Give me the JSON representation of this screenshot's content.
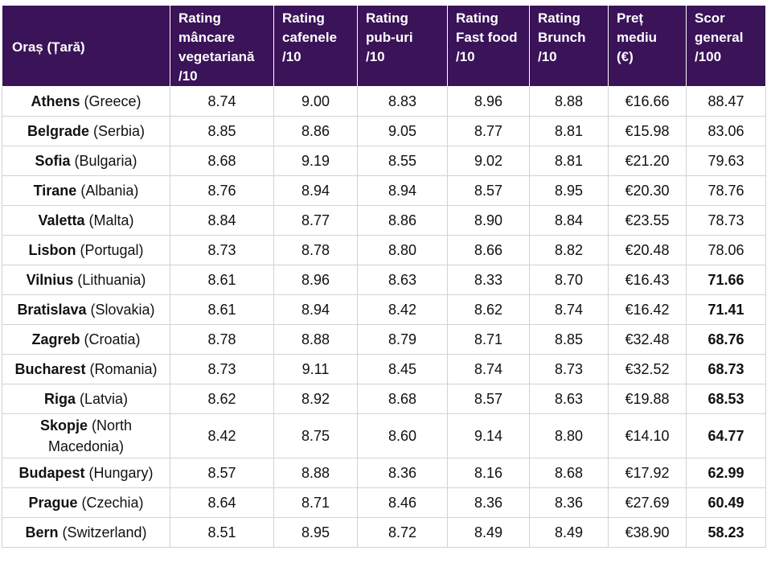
{
  "table": {
    "headers": [
      "Oraș (Țară)",
      "Rating\nmâncare\nvegetariană\n/10",
      "Rating\ncafenele\n/10",
      "Rating\npub-uri\n/10",
      "Rating\nFast food\n/10",
      "Rating\nBrunch\n/10",
      "Preț\nmediu\n(€)",
      "Scor\ngeneral\n/100"
    ],
    "rows": [
      {
        "city": "Athens",
        "country": "(Greece)",
        "veg": "8.74",
        "cafe": "9.00",
        "pub": "8.83",
        "fast": "8.96",
        "brunch": "8.88",
        "price": "€16.66",
        "score": "88.47",
        "score_bold": false
      },
      {
        "city": "Belgrade",
        "country": "(Serbia)",
        "veg": "8.85",
        "cafe": "8.86",
        "pub": "9.05",
        "fast": "8.77",
        "brunch": "8.81",
        "price": "€15.98",
        "score": "83.06",
        "score_bold": false
      },
      {
        "city": "Sofia",
        "country": "(Bulgaria)",
        "veg": "8.68",
        "cafe": "9.19",
        "pub": "8.55",
        "fast": "9.02",
        "brunch": "8.81",
        "price": "€21.20",
        "score": "79.63",
        "score_bold": false
      },
      {
        "city": "Tirane",
        "country": "(Albania)",
        "veg": "8.76",
        "cafe": "8.94",
        "pub": "8.94",
        "fast": "8.57",
        "brunch": "8.95",
        "price": "€20.30",
        "score": "78.76",
        "score_bold": false
      },
      {
        "city": "Valetta",
        "country": "(Malta)",
        "veg": "8.84",
        "cafe": "8.77",
        "pub": "8.86",
        "fast": "8.90",
        "brunch": "8.84",
        "price": "€23.55",
        "score": "78.73",
        "score_bold": false
      },
      {
        "city": "Lisbon",
        "country": "(Portugal)",
        "veg": "8.73",
        "cafe": "8.78",
        "pub": "8.80",
        "fast": "8.66",
        "brunch": "8.82",
        "price": "€20.48",
        "score": "78.06",
        "score_bold": false
      },
      {
        "city": "Vilnius",
        "country": "(Lithuania)",
        "veg": "8.61",
        "cafe": "8.96",
        "pub": "8.63",
        "fast": "8.33",
        "brunch": "8.70",
        "price": "€16.43",
        "score": "71.66",
        "score_bold": true
      },
      {
        "city": "Bratislava",
        "country": "(Slovakia)",
        "veg": "8.61",
        "cafe": "8.94",
        "pub": "8.42",
        "fast": "8.62",
        "brunch": "8.74",
        "price": "€16.42",
        "score": "71.41",
        "score_bold": true
      },
      {
        "city": "Zagreb",
        "country": "(Croatia)",
        "veg": "8.78",
        "cafe": "8.88",
        "pub": "8.79",
        "fast": "8.71",
        "brunch": "8.85",
        "price": "€32.48",
        "score": "68.76",
        "score_bold": true
      },
      {
        "city": "Bucharest",
        "country": "(Romania)",
        "veg": "8.73",
        "cafe": "9.11",
        "pub": "8.45",
        "fast": "8.74",
        "brunch": "8.73",
        "price": "€32.52",
        "score": "68.73",
        "score_bold": true
      },
      {
        "city": "Riga",
        "country": "(Latvia)",
        "veg": "8.62",
        "cafe": "8.92",
        "pub": "8.68",
        "fast": "8.57",
        "brunch": "8.63",
        "price": "€19.88",
        "score": "68.53",
        "score_bold": true
      },
      {
        "city": "Skopje",
        "country": "(North Macedonia)",
        "veg": "8.42",
        "cafe": "8.75",
        "pub": "8.60",
        "fast": "9.14",
        "brunch": "8.80",
        "price": "€14.10",
        "score": "64.77",
        "score_bold": true,
        "tall": true
      },
      {
        "city": "Budapest",
        "country": "(Hungary)",
        "veg": "8.57",
        "cafe": "8.88",
        "pub": "8.36",
        "fast": "8.16",
        "brunch": "8.68",
        "price": "€17.92",
        "score": "62.99",
        "score_bold": true
      },
      {
        "city": "Prague",
        "country": "(Czechia)",
        "veg": "8.64",
        "cafe": "8.71",
        "pub": "8.46",
        "fast": "8.36",
        "brunch": "8.36",
        "price": "€27.69",
        "score": "60.49",
        "score_bold": true
      },
      {
        "city": "Bern",
        "country": "(Switzerland)",
        "veg": "8.51",
        "cafe": "8.95",
        "pub": "8.72",
        "fast": "8.49",
        "brunch": "8.49",
        "price": "€38.90",
        "score": "58.23",
        "score_bold": true
      }
    ]
  },
  "colors": {
    "header_bg": "#3a1358",
    "header_text": "#ffffff",
    "border": "#d2d2d2"
  }
}
